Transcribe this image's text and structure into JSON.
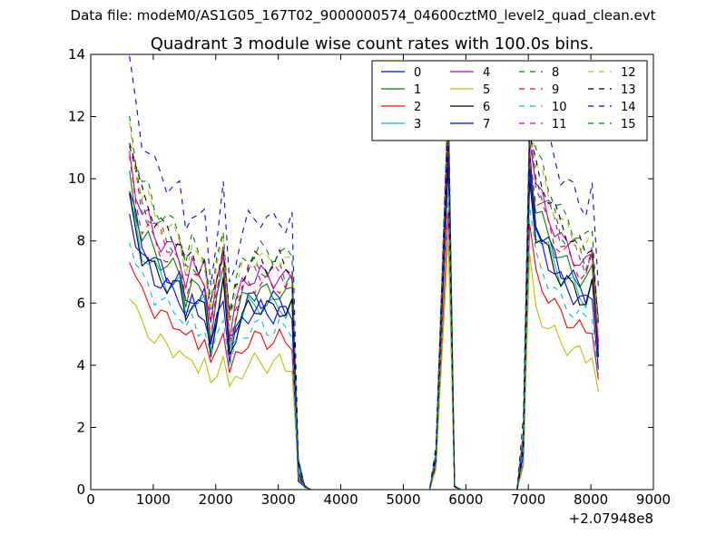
{
  "figure": {
    "suptitle": "Data file: modeM0/AS1G05_167T02_9000000574_04600cztM0_level2_quad_clean.evt"
  },
  "chart_data": {
    "type": "line",
    "title": "Quadrant 3 module wise count rates with 100.0s bins.",
    "xlabel": "",
    "ylabel": "",
    "x_offset_label": "+2.07948e8",
    "xlim": [
      0,
      9000
    ],
    "ylim": [
      0,
      14
    ],
    "xticks": [
      0,
      1000,
      2000,
      3000,
      4000,
      5000,
      6000,
      7000,
      8000,
      9000
    ],
    "yticks": [
      0,
      2,
      4,
      6,
      8,
      10,
      12,
      14
    ],
    "grid": false,
    "legend": {
      "placement": "top-right",
      "columns": 4
    },
    "x": [
      620,
      720,
      820,
      920,
      1020,
      1120,
      1220,
      1320,
      1420,
      1520,
      1620,
      1720,
      1820,
      1920,
      2020,
      2120,
      2220,
      2320,
      2420,
      2520,
      2620,
      2720,
      2820,
      2920,
      3020,
      3120,
      3220,
      3320,
      3420,
      3520,
      3620,
      3720,
      3820,
      3920,
      4020,
      4120,
      4220,
      4320,
      4420,
      4520,
      4620,
      4720,
      4820,
      4920,
      5020,
      5120,
      5220,
      5320,
      5420,
      5520,
      5620,
      5720,
      5820,
      5920,
      6020,
      6120,
      6220,
      6320,
      6420,
      6520,
      6620,
      6720,
      6820,
      6920,
      7020,
      7120,
      7220,
      7320,
      7420,
      7520,
      7620,
      7720,
      7820,
      7920,
      8020,
      8120
    ],
    "profiles": {
      "A": [
        1.0,
        0.9,
        0.82,
        0.8,
        0.76,
        0.74,
        0.72,
        0.71,
        0.7,
        0.62,
        0.66,
        0.63,
        0.64,
        0.5,
        0.6,
        0.7,
        0.48,
        0.55,
        0.6,
        0.63,
        0.64,
        0.64,
        0.63,
        0.63,
        0.64,
        0.62,
        0.63,
        0.06,
        0.01,
        0,
        0,
        0,
        0,
        0,
        0,
        0,
        0,
        0,
        0,
        0,
        0,
        0,
        0,
        0,
        0,
        0,
        0,
        0,
        0,
        0.1,
        0.32,
        1.0,
        0.01,
        0,
        0,
        0,
        0,
        0,
        0,
        0,
        0,
        0,
        0,
        0.15,
        1.0,
        0.9,
        0.86,
        0.82,
        0.78,
        0.74,
        0.72,
        0.7,
        0.68,
        0.66,
        0.7,
        0.46
      ],
      "B": [
        0,
        0,
        0,
        0,
        0,
        0,
        0,
        0,
        0,
        0,
        0,
        0,
        0,
        0,
        0,
        0,
        0,
        0,
        0,
        0,
        0,
        0,
        0,
        0,
        0,
        0,
        0,
        0,
        0,
        0,
        0,
        0,
        0,
        0,
        0,
        0,
        0,
        0,
        0,
        0,
        0,
        0,
        0,
        0,
        0,
        0,
        0,
        0,
        0,
        0.12,
        0.4,
        1.0,
        0.01,
        0,
        0,
        0,
        0,
        0,
        0,
        0,
        0,
        0,
        0,
        0,
        0,
        0,
        0,
        0,
        0,
        0,
        0,
        0,
        0,
        0,
        0,
        0
      ]
    },
    "series": [
      {
        "name": "0",
        "color": "#0000ff",
        "dash": "solid",
        "scale": 9.6,
        "noise": 0.35,
        "peak": 11.5
      },
      {
        "name": "1",
        "color": "#008000",
        "dash": "solid",
        "scale": 10.0,
        "noise": 0.35,
        "peak": 11.0
      },
      {
        "name": "2",
        "color": "#ff0000",
        "dash": "solid",
        "scale": 7.6,
        "noise": 0.3,
        "peak": 9.0
      },
      {
        "name": "3",
        "color": "#00bfbf",
        "dash": "solid",
        "scale": 9.3,
        "noise": 0.35,
        "peak": 10.8
      },
      {
        "name": "4",
        "color": "#bf00bf",
        "dash": "solid",
        "scale": 10.8,
        "noise": 0.38,
        "peak": 11.8
      },
      {
        "name": "5",
        "color": "#bfbf00",
        "dash": "solid",
        "scale": 6.4,
        "noise": 0.3,
        "peak": 8.0
      },
      {
        "name": "6",
        "color": "#000000",
        "dash": "solid",
        "scale": 9.2,
        "noise": 0.35,
        "peak": 10.5
      },
      {
        "name": "7",
        "color": "#0000ff",
        "dash": "solid",
        "scale": 9.0,
        "noise": 0.35,
        "peak": 10.9
      },
      {
        "name": "8",
        "color": "#008000",
        "dash": "dashed",
        "scale": 11.2,
        "noise": 0.35,
        "peak": 12.2
      },
      {
        "name": "9",
        "color": "#ff0000",
        "dash": "dashed",
        "scale": 10.4,
        "noise": 0.35,
        "peak": 11.4
      },
      {
        "name": "10",
        "color": "#00bfbf",
        "dash": "dashed",
        "scale": 8.2,
        "noise": 0.3,
        "peak": 9.6
      },
      {
        "name": "11",
        "color": "#bf00bf",
        "dash": "dashed",
        "scale": 11.0,
        "noise": 0.35,
        "peak": 12.4
      },
      {
        "name": "12",
        "color": "#bfbf00",
        "dash": "dashed",
        "scale": 11.6,
        "noise": 0.35,
        "peak": 13.0
      },
      {
        "name": "13",
        "color": "#000000",
        "dash": "dashed",
        "scale": 11.5,
        "noise": 0.35,
        "peak": 12.0
      },
      {
        "name": "14",
        "color": "#0000ff",
        "dash": "dashed",
        "scale": 13.7,
        "noise": 0.35,
        "peak": 12.6
      },
      {
        "name": "15",
        "color": "#008000",
        "dash": "dashed",
        "scale": 12.0,
        "noise": 0.35,
        "peak": 12.7
      }
    ]
  }
}
